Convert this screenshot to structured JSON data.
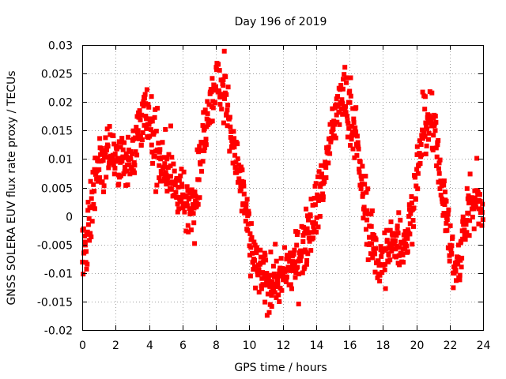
{
  "chart_data": {
    "type": "scatter",
    "title": "Day 196 of 2019",
    "xlabel": "GPS time / hours",
    "ylabel": "GNSS SOLERA EUV flux rate proxy / TECUs",
    "xlim": [
      0,
      24
    ],
    "ylim": [
      -0.02,
      0.03
    ],
    "x_ticks": [
      0,
      2,
      4,
      6,
      8,
      10,
      12,
      14,
      16,
      18,
      20,
      22,
      24
    ],
    "x_tick_labels": [
      "0",
      "2",
      "4",
      "6",
      "8",
      "10",
      "12",
      "14",
      "16",
      "18",
      "20",
      "22",
      "24"
    ],
    "y_ticks": [
      -0.02,
      -0.015,
      -0.01,
      -0.005,
      0,
      0.005,
      0.01,
      0.015,
      0.02,
      0.025,
      0.03
    ],
    "y_tick_labels": [
      "-0.02",
      "-0.015",
      "-0.01",
      "-0.005",
      "0",
      "0.005",
      "0.01",
      "0.015",
      "0.02",
      "0.025",
      "0.03"
    ],
    "grid": true,
    "marker": "filled-square",
    "series": [
      {
        "name": "EUV flux rate proxy",
        "color": "#ff0000",
        "trend_x": [
          0.0,
          0.3,
          0.6,
          1.0,
          1.4,
          1.8,
          2.2,
          2.6,
          3.0,
          3.4,
          3.8,
          4.0,
          4.4,
          4.8,
          5.2,
          5.6,
          6.0,
          6.4,
          6.8,
          7.2,
          7.6,
          8.0,
          8.4,
          8.8,
          9.2,
          9.6,
          10.0,
          10.4,
          10.8,
          11.2,
          11.6,
          12.0,
          12.4,
          12.8,
          13.2,
          13.6,
          14.0,
          14.4,
          14.8,
          15.2,
          15.6,
          16.0,
          16.4,
          16.8,
          17.2,
          17.6,
          18.0,
          18.4,
          18.8,
          19.2,
          19.6,
          20.0,
          20.4,
          20.8,
          21.2,
          21.6,
          22.0,
          22.4,
          22.8,
          23.2,
          23.6,
          24.0
        ],
        "trend_y": [
          -0.007,
          -0.004,
          0.002,
          0.009,
          0.012,
          0.011,
          0.01,
          0.009,
          0.011,
          0.015,
          0.018,
          0.016,
          0.012,
          0.01,
          0.007,
          0.005,
          0.003,
          0.001,
          0.004,
          0.012,
          0.019,
          0.024,
          0.022,
          0.017,
          0.01,
          0.004,
          -0.004,
          -0.009,
          -0.011,
          -0.012,
          -0.011,
          -0.011,
          -0.009,
          -0.008,
          -0.005,
          -0.002,
          0.002,
          0.006,
          0.012,
          0.018,
          0.021,
          0.02,
          0.013,
          0.004,
          -0.003,
          -0.007,
          -0.008,
          -0.006,
          -0.004,
          -0.005,
          -0.002,
          0.007,
          0.014,
          0.017,
          0.013,
          0.004,
          -0.005,
          -0.01,
          -0.004,
          0.002,
          0.004,
          0.0
        ],
        "scatter_spread": 0.0035,
        "point_count": 1100
      }
    ]
  }
}
